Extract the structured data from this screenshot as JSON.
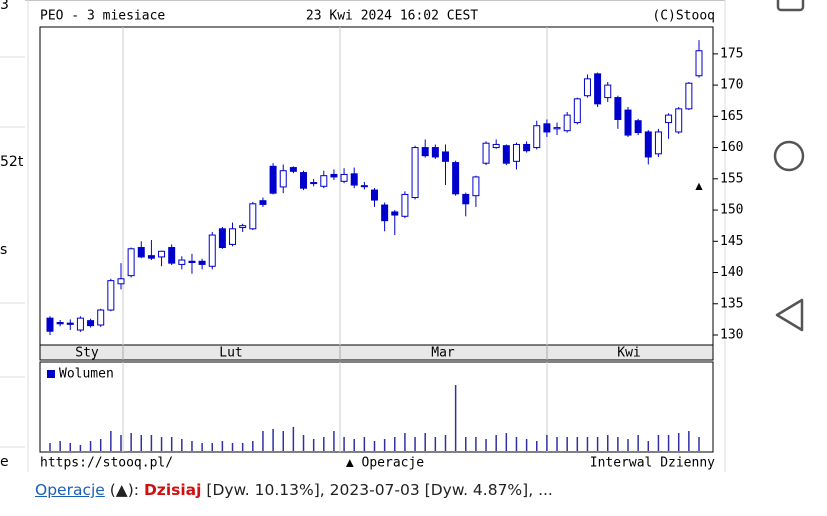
{
  "edge_texts": [
    "3",
    "52t",
    "s",
    "e"
  ],
  "chart_data": {
    "type": "candlestick",
    "title": "PEO - 3 miesiace",
    "timestamp": "23 Kwi 2024 16:02 CEST",
    "source": "(C)Stooq",
    "months": [
      "Sty",
      "Lut",
      "Mar",
      "Kwi"
    ],
    "series": [
      {
        "name": "PEO",
        "color": "#0000cc",
        "open": [
          132.7,
          132,
          131.9,
          130.8,
          132.3,
          131.6,
          134,
          138.2,
          139.5,
          144,
          142.7,
          142.5,
          144,
          141.3,
          141.8,
          141.8,
          141,
          147,
          144.5,
          147.2,
          147,
          151.5,
          157,
          153.7,
          156.8,
          156,
          154.3,
          153.8,
          155.7,
          154.6,
          155.8,
          153.9,
          153.2,
          150.8,
          149.7,
          149,
          152,
          160,
          160,
          159.3,
          157.6,
          152.5,
          152.3,
          157.5,
          160,
          160.3,
          157.8,
          160.5,
          160,
          163.8,
          163,
          162.7,
          164,
          168.3,
          171.8,
          168,
          168,
          166,
          164.3,
          162.5,
          159,
          164,
          162.5,
          166.2,
          171.5
        ],
        "high": [
          133,
          132.4,
          132.5,
          133,
          132.6,
          134.2,
          139,
          141.5,
          144,
          145,
          145.2,
          143.5,
          144.5,
          142.6,
          143,
          142.2,
          146.5,
          147.3,
          148,
          147.8,
          151.3,
          152,
          157.5,
          157.3,
          157,
          156.3,
          155,
          156.3,
          156.5,
          156.7,
          156.8,
          154.5,
          153.5,
          151.2,
          150,
          153,
          160.3,
          161.3,
          160.5,
          160.5,
          157.9,
          152.8,
          155.5,
          161,
          161.3,
          160.5,
          160.8,
          161,
          164.3,
          164.5,
          164,
          165.7,
          168,
          171.7,
          172,
          170.5,
          168.3,
          166.5,
          164.6,
          162.8,
          163,
          165.5,
          166.5,
          170.5,
          177.2
        ],
        "low": [
          130,
          131.4,
          130.8,
          130.5,
          131.2,
          131.3,
          133.8,
          137.3,
          139.2,
          142.3,
          142,
          141,
          141.2,
          140.5,
          139.8,
          140.5,
          140.5,
          143.8,
          144.2,
          146.5,
          146.8,
          150.5,
          152.5,
          152.7,
          155.9,
          153.2,
          153.8,
          153.5,
          154.8,
          154.3,
          153.5,
          153.3,
          150.5,
          146.6,
          146,
          148.7,
          151.7,
          158.4,
          158.2,
          154,
          152.3,
          149,
          150.5,
          157.2,
          159.8,
          157.2,
          156.5,
          159.2,
          159.7,
          161.7,
          162,
          162.4,
          163.7,
          168,
          166.5,
          167.3,
          163,
          161.7,
          162,
          157.3,
          158.5,
          161.4,
          162.2,
          166,
          171.2
        ],
        "close": [
          130.6,
          131.8,
          131.7,
          132.7,
          131.5,
          134,
          138.7,
          139,
          143.8,
          142.5,
          142.3,
          143.4,
          141.5,
          142,
          141.6,
          141.3,
          146,
          144,
          147,
          147.5,
          151,
          150.9,
          152.7,
          156.3,
          156.2,
          153.5,
          154.4,
          155.5,
          155.3,
          155.7,
          154,
          153.8,
          151.6,
          148.3,
          149.2,
          152.5,
          160,
          158.7,
          158.5,
          157.8,
          152.6,
          151,
          155.3,
          160.7,
          160.5,
          157.5,
          160.5,
          159.5,
          163.5,
          162.5,
          163.2,
          165.2,
          167.8,
          171,
          167,
          170,
          164.5,
          162,
          162.4,
          158.5,
          162.5,
          165.2,
          166.2,
          170.3,
          175.5
        ]
      }
    ],
    "ylim": [
      128.4,
      179.3
    ],
    "yticks": [
      130,
      135,
      140,
      145,
      150,
      155,
      160,
      165,
      170,
      175
    ],
    "grid": "vertical",
    "marker": "▲",
    "volume": {
      "name": "Wolumen",
      "color": "#3030a0",
      "values": [
        8,
        10,
        8,
        6,
        10,
        12,
        20,
        16,
        18,
        16,
        16,
        14,
        14,
        12,
        10,
        8,
        8,
        10,
        8,
        8,
        10,
        20,
        22,
        20,
        24,
        16,
        12,
        14,
        20,
        14,
        12,
        14,
        10,
        12,
        14,
        18,
        14,
        18,
        14,
        16,
        66,
        14,
        14,
        12,
        16,
        18,
        14,
        12,
        10,
        16,
        14,
        14,
        14,
        14,
        14,
        16,
        14,
        12,
        16,
        10,
        16,
        16,
        18,
        20,
        14
      ]
    },
    "footer": {
      "url": "https://stooq.pl/",
      "operations": "▲ Operacje",
      "interval": "Interwal Dzienny"
    }
  },
  "note_line": {
    "link": "Operacje",
    "paren": "(▲):",
    "today": "Dzisiaj",
    "rest": "[Dyw. 10.13%], 2023-07-03 [Dyw. 4.87%], ..."
  }
}
